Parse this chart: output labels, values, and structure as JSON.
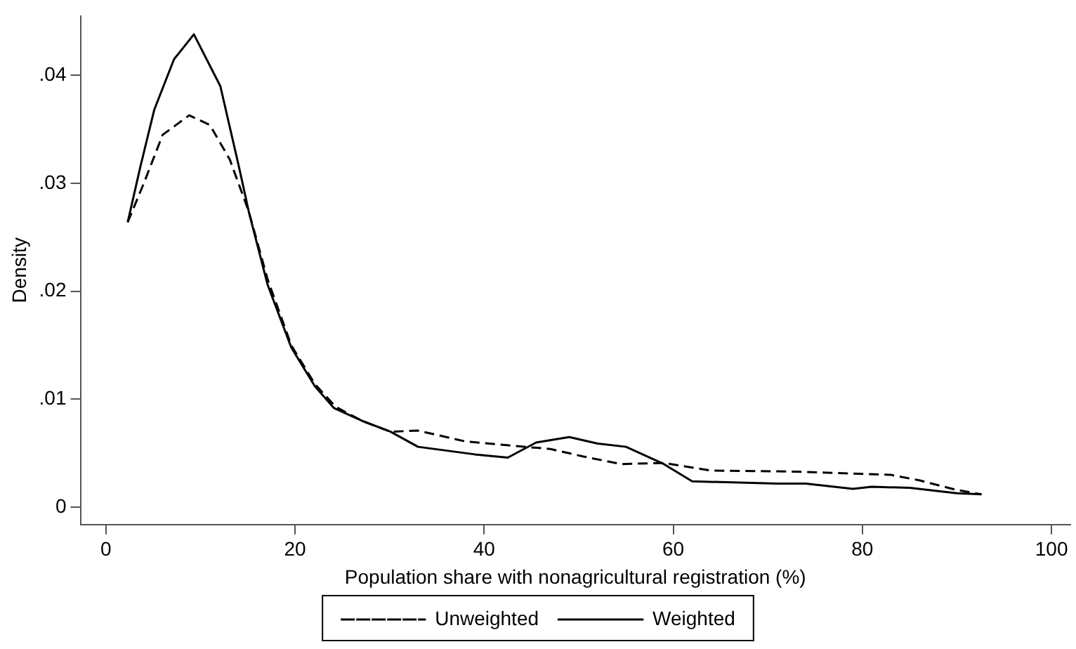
{
  "chart_data": {
    "type": "line",
    "xlabel": "Population share with nonagricultural registration (%)",
    "ylabel": "Density",
    "xlim": [
      -2.7,
      102
    ],
    "xticks": [
      0,
      20,
      40,
      60,
      80,
      100
    ],
    "ylim": [
      -0.0016,
      0.0455
    ],
    "yticks": [
      {
        "value": 0,
        "label": "0"
      },
      {
        "value": 0.01,
        "label": ".01"
      },
      {
        "value": 0.02,
        "label": ".02"
      },
      {
        "value": 0.03,
        "label": ".03"
      },
      {
        "value": 0.04,
        "label": ".04"
      }
    ],
    "grid": false,
    "legend": "bottom",
    "marker": "none",
    "series": [
      {
        "name": "Unweighted",
        "color": "#000000",
        "line_style": "dashed",
        "x": [
          2.3,
          4,
          6,
          8.8,
          11,
          13.1,
          15.1,
          17.1,
          19.6,
          22.1,
          24.3,
          27.1,
          30.1,
          33,
          38,
          43,
          47,
          50.5,
          54.5,
          59,
          64,
          73,
          83,
          86,
          90,
          92.6
        ],
        "values": [
          0.0264,
          0.03,
          0.0345,
          0.0363,
          0.0354,
          0.0322,
          0.0274,
          0.0211,
          0.015,
          0.0114,
          0.0093,
          0.008,
          0.007,
          0.0071,
          0.0061,
          0.0057,
          0.0054,
          0.0047,
          0.004,
          0.0041,
          0.0034,
          0.0033,
          0.003,
          0.0025,
          0.0016,
          0.0012
        ]
      },
      {
        "name": "Weighted",
        "color": "#000000",
        "line_style": "solid",
        "x": [
          2.3,
          3.6,
          5.1,
          7.2,
          9.3,
          12.1,
          14.1,
          15.1,
          17.1,
          19.6,
          22.1,
          24.1,
          27.1,
          30.1,
          33,
          39,
          42.5,
          45.5,
          49,
          52,
          55,
          59,
          62,
          71,
          74,
          79,
          81,
          85,
          90,
          92.6
        ],
        "values": [
          0.0264,
          0.0314,
          0.0368,
          0.0415,
          0.0438,
          0.039,
          0.0314,
          0.0274,
          0.0206,
          0.0148,
          0.0112,
          0.0092,
          0.008,
          0.007,
          0.0056,
          0.0049,
          0.0046,
          0.006,
          0.0065,
          0.0059,
          0.0056,
          0.004,
          0.0024,
          0.0022,
          0.0022,
          0.0017,
          0.0019,
          0.0018,
          0.0013,
          0.0012
        ]
      }
    ]
  }
}
